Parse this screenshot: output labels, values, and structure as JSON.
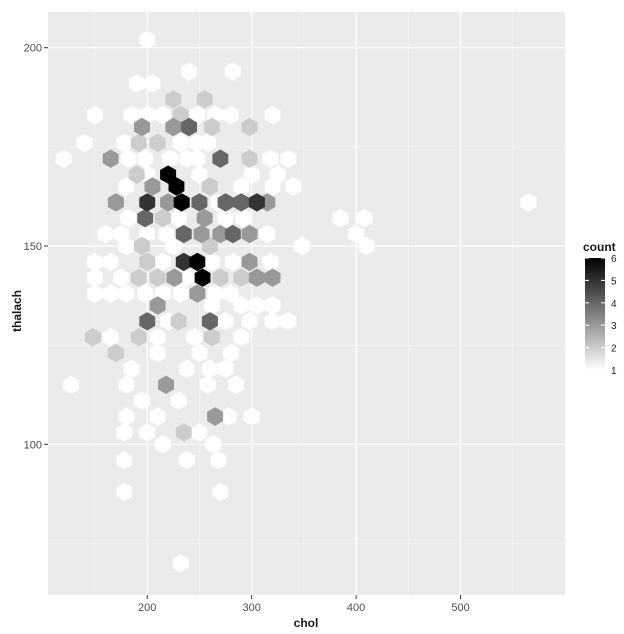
{
  "chart_data": {
    "type": "heatmap",
    "subtype": "hexbin",
    "xlabel": "chol",
    "ylabel": "thalach",
    "xlim": [
      105,
      600
    ],
    "ylim": [
      62,
      209
    ],
    "x_ticks": [
      200,
      300,
      400,
      500
    ],
    "y_ticks": [
      100,
      150,
      200
    ],
    "x_minor_ticks": [
      150,
      250,
      350,
      450,
      550
    ],
    "y_minor_ticks": [
      75,
      125,
      175
    ],
    "grid": true,
    "legend": {
      "title": "count",
      "position": "right",
      "labels": [
        1,
        2,
        3,
        4,
        5,
        6
      ],
      "min": 1,
      "max": 6
    },
    "colors": {
      "panel": "#ebebeb",
      "grid": "#ffffff",
      "low": "#ffffff",
      "high": "#000000"
    },
    "hexes": [
      {
        "x": 200,
        "y": 202,
        "count": 1
      },
      {
        "x": 190,
        "y": 191,
        "count": 1
      },
      {
        "x": 205,
        "y": 191,
        "count": 1
      },
      {
        "x": 240,
        "y": 194,
        "count": 1
      },
      {
        "x": 282,
        "y": 194,
        "count": 1
      },
      {
        "x": 225,
        "y": 187,
        "count": 2
      },
      {
        "x": 255,
        "y": 187,
        "count": 2
      },
      {
        "x": 150,
        "y": 183,
        "count": 1
      },
      {
        "x": 185,
        "y": 183,
        "count": 1
      },
      {
        "x": 200,
        "y": 183,
        "count": 1
      },
      {
        "x": 215,
        "y": 183,
        "count": 1
      },
      {
        "x": 232,
        "y": 183,
        "count": 2
      },
      {
        "x": 248,
        "y": 183,
        "count": 1
      },
      {
        "x": 265,
        "y": 183,
        "count": 1
      },
      {
        "x": 280,
        "y": 183,
        "count": 1
      },
      {
        "x": 320,
        "y": 183,
        "count": 1
      },
      {
        "x": 195,
        "y": 180,
        "count": 3
      },
      {
        "x": 225,
        "y": 180,
        "count": 3
      },
      {
        "x": 240,
        "y": 180,
        "count": 4
      },
      {
        "x": 262,
        "y": 180,
        "count": 2
      },
      {
        "x": 298,
        "y": 180,
        "count": 2
      },
      {
        "x": 140,
        "y": 176,
        "count": 1
      },
      {
        "x": 178,
        "y": 176,
        "count": 1
      },
      {
        "x": 192,
        "y": 176,
        "count": 2
      },
      {
        "x": 210,
        "y": 176,
        "count": 2
      },
      {
        "x": 232,
        "y": 176,
        "count": 1
      },
      {
        "x": 248,
        "y": 176,
        "count": 1
      },
      {
        "x": 258,
        "y": 176,
        "count": 1
      },
      {
        "x": 120,
        "y": 172,
        "count": 1
      },
      {
        "x": 165,
        "y": 172,
        "count": 3
      },
      {
        "x": 182,
        "y": 172,
        "count": 1
      },
      {
        "x": 198,
        "y": 172,
        "count": 1
      },
      {
        "x": 222,
        "y": 172,
        "count": 1
      },
      {
        "x": 238,
        "y": 172,
        "count": 1
      },
      {
        "x": 248,
        "y": 172,
        "count": 1
      },
      {
        "x": 270,
        "y": 172,
        "count": 4
      },
      {
        "x": 298,
        "y": 172,
        "count": 2
      },
      {
        "x": 318,
        "y": 172,
        "count": 1
      },
      {
        "x": 335,
        "y": 172,
        "count": 1
      },
      {
        "x": 220,
        "y": 168,
        "count": 6
      },
      {
        "x": 200,
        "y": 168,
        "count": 1
      },
      {
        "x": 190,
        "y": 168,
        "count": 2
      },
      {
        "x": 250,
        "y": 168,
        "count": 1
      },
      {
        "x": 300,
        "y": 168,
        "count": 1
      },
      {
        "x": 325,
        "y": 168,
        "count": 1
      },
      {
        "x": 205,
        "y": 165,
        "count": 3
      },
      {
        "x": 228,
        "y": 165,
        "count": 6
      },
      {
        "x": 180,
        "y": 165,
        "count": 1
      },
      {
        "x": 260,
        "y": 165,
        "count": 2
      },
      {
        "x": 290,
        "y": 165,
        "count": 1
      },
      {
        "x": 320,
        "y": 165,
        "count": 1
      },
      {
        "x": 340,
        "y": 165,
        "count": 1
      },
      {
        "x": 170,
        "y": 161,
        "count": 3
      },
      {
        "x": 200,
        "y": 161,
        "count": 5
      },
      {
        "x": 220,
        "y": 161,
        "count": 3
      },
      {
        "x": 233,
        "y": 161,
        "count": 6
      },
      {
        "x": 250,
        "y": 161,
        "count": 4
      },
      {
        "x": 268,
        "y": 161,
        "count": 1
      },
      {
        "x": 275,
        "y": 161,
        "count": 4
      },
      {
        "x": 290,
        "y": 161,
        "count": 4
      },
      {
        "x": 305,
        "y": 161,
        "count": 5
      },
      {
        "x": 315,
        "y": 161,
        "count": 3
      },
      {
        "x": 565,
        "y": 161,
        "count": 1
      },
      {
        "x": 182,
        "y": 157,
        "count": 1
      },
      {
        "x": 198,
        "y": 157,
        "count": 4
      },
      {
        "x": 215,
        "y": 157,
        "count": 2
      },
      {
        "x": 230,
        "y": 157,
        "count": 1
      },
      {
        "x": 255,
        "y": 157,
        "count": 3
      },
      {
        "x": 275,
        "y": 157,
        "count": 1
      },
      {
        "x": 292,
        "y": 157,
        "count": 1
      },
      {
        "x": 385,
        "y": 157,
        "count": 1
      },
      {
        "x": 408,
        "y": 157,
        "count": 1
      },
      {
        "x": 160,
        "y": 153,
        "count": 1
      },
      {
        "x": 175,
        "y": 153,
        "count": 1
      },
      {
        "x": 200,
        "y": 153,
        "count": 1
      },
      {
        "x": 218,
        "y": 153,
        "count": 1
      },
      {
        "x": 235,
        "y": 153,
        "count": 4
      },
      {
        "x": 252,
        "y": 153,
        "count": 3
      },
      {
        "x": 270,
        "y": 153,
        "count": 3
      },
      {
        "x": 282,
        "y": 153,
        "count": 4
      },
      {
        "x": 298,
        "y": 153,
        "count": 3
      },
      {
        "x": 315,
        "y": 153,
        "count": 1
      },
      {
        "x": 400,
        "y": 153,
        "count": 1
      },
      {
        "x": 180,
        "y": 150,
        "count": 1
      },
      {
        "x": 195,
        "y": 150,
        "count": 2
      },
      {
        "x": 225,
        "y": 150,
        "count": 1
      },
      {
        "x": 260,
        "y": 150,
        "count": 2
      },
      {
        "x": 348,
        "y": 150,
        "count": 1
      },
      {
        "x": 410,
        "y": 150,
        "count": 1
      },
      {
        "x": 150,
        "y": 146,
        "count": 1
      },
      {
        "x": 165,
        "y": 146,
        "count": 1
      },
      {
        "x": 200,
        "y": 146,
        "count": 2
      },
      {
        "x": 215,
        "y": 146,
        "count": 1
      },
      {
        "x": 235,
        "y": 146,
        "count": 5
      },
      {
        "x": 248,
        "y": 146,
        "count": 6
      },
      {
        "x": 262,
        "y": 146,
        "count": 1
      },
      {
        "x": 282,
        "y": 146,
        "count": 1
      },
      {
        "x": 298,
        "y": 146,
        "count": 3
      },
      {
        "x": 318,
        "y": 146,
        "count": 1
      },
      {
        "x": 150,
        "y": 142,
        "count": 1
      },
      {
        "x": 175,
        "y": 142,
        "count": 1
      },
      {
        "x": 192,
        "y": 142,
        "count": 2
      },
      {
        "x": 210,
        "y": 142,
        "count": 2
      },
      {
        "x": 226,
        "y": 142,
        "count": 3
      },
      {
        "x": 238,
        "y": 142,
        "count": 1
      },
      {
        "x": 253,
        "y": 142,
        "count": 6
      },
      {
        "x": 270,
        "y": 142,
        "count": 2
      },
      {
        "x": 290,
        "y": 142,
        "count": 2
      },
      {
        "x": 305,
        "y": 142,
        "count": 3
      },
      {
        "x": 320,
        "y": 142,
        "count": 3
      },
      {
        "x": 150,
        "y": 138,
        "count": 1
      },
      {
        "x": 165,
        "y": 138,
        "count": 1
      },
      {
        "x": 180,
        "y": 138,
        "count": 1
      },
      {
        "x": 198,
        "y": 138,
        "count": 1
      },
      {
        "x": 215,
        "y": 138,
        "count": 1
      },
      {
        "x": 232,
        "y": 138,
        "count": 1
      },
      {
        "x": 248,
        "y": 138,
        "count": 3
      },
      {
        "x": 265,
        "y": 138,
        "count": 1
      },
      {
        "x": 280,
        "y": 138,
        "count": 1
      },
      {
        "x": 210,
        "y": 135,
        "count": 3
      },
      {
        "x": 262,
        "y": 135,
        "count": 1
      },
      {
        "x": 290,
        "y": 135,
        "count": 1
      },
      {
        "x": 305,
        "y": 135,
        "count": 1
      },
      {
        "x": 320,
        "y": 135,
        "count": 1
      },
      {
        "x": 200,
        "y": 131,
        "count": 4
      },
      {
        "x": 220,
        "y": 131,
        "count": 1
      },
      {
        "x": 230,
        "y": 131,
        "count": 2
      },
      {
        "x": 260,
        "y": 131,
        "count": 4
      },
      {
        "x": 275,
        "y": 131,
        "count": 1
      },
      {
        "x": 298,
        "y": 131,
        "count": 1
      },
      {
        "x": 320,
        "y": 131,
        "count": 1
      },
      {
        "x": 335,
        "y": 131,
        "count": 1
      },
      {
        "x": 148,
        "y": 127,
        "count": 2
      },
      {
        "x": 165,
        "y": 127,
        "count": 1
      },
      {
        "x": 192,
        "y": 127,
        "count": 2
      },
      {
        "x": 210,
        "y": 127,
        "count": 1
      },
      {
        "x": 245,
        "y": 127,
        "count": 1
      },
      {
        "x": 262,
        "y": 127,
        "count": 2
      },
      {
        "x": 290,
        "y": 127,
        "count": 1
      },
      {
        "x": 170,
        "y": 123,
        "count": 2
      },
      {
        "x": 210,
        "y": 123,
        "count": 1
      },
      {
        "x": 250,
        "y": 123,
        "count": 1
      },
      {
        "x": 280,
        "y": 123,
        "count": 1
      },
      {
        "x": 185,
        "y": 119,
        "count": 1
      },
      {
        "x": 238,
        "y": 119,
        "count": 1
      },
      {
        "x": 260,
        "y": 119,
        "count": 1
      },
      {
        "x": 275,
        "y": 119,
        "count": 1
      },
      {
        "x": 127,
        "y": 115,
        "count": 1
      },
      {
        "x": 180,
        "y": 115,
        "count": 1
      },
      {
        "x": 218,
        "y": 115,
        "count": 3
      },
      {
        "x": 258,
        "y": 115,
        "count": 1
      },
      {
        "x": 285,
        "y": 115,
        "count": 1
      },
      {
        "x": 195,
        "y": 111,
        "count": 1
      },
      {
        "x": 230,
        "y": 111,
        "count": 1
      },
      {
        "x": 180,
        "y": 107,
        "count": 1
      },
      {
        "x": 210,
        "y": 107,
        "count": 1
      },
      {
        "x": 265,
        "y": 107,
        "count": 3
      },
      {
        "x": 278,
        "y": 107,
        "count": 1
      },
      {
        "x": 300,
        "y": 107,
        "count": 1
      },
      {
        "x": 178,
        "y": 103,
        "count": 1
      },
      {
        "x": 200,
        "y": 103,
        "count": 1
      },
      {
        "x": 235,
        "y": 103,
        "count": 2
      },
      {
        "x": 250,
        "y": 103,
        "count": 1
      },
      {
        "x": 215,
        "y": 100,
        "count": 1
      },
      {
        "x": 263,
        "y": 100,
        "count": 1
      },
      {
        "x": 178,
        "y": 96,
        "count": 1
      },
      {
        "x": 238,
        "y": 96,
        "count": 1
      },
      {
        "x": 268,
        "y": 96,
        "count": 1
      },
      {
        "x": 178,
        "y": 88,
        "count": 1
      },
      {
        "x": 270,
        "y": 88,
        "count": 1
      },
      {
        "x": 232,
        "y": 70,
        "count": 1
      }
    ]
  }
}
